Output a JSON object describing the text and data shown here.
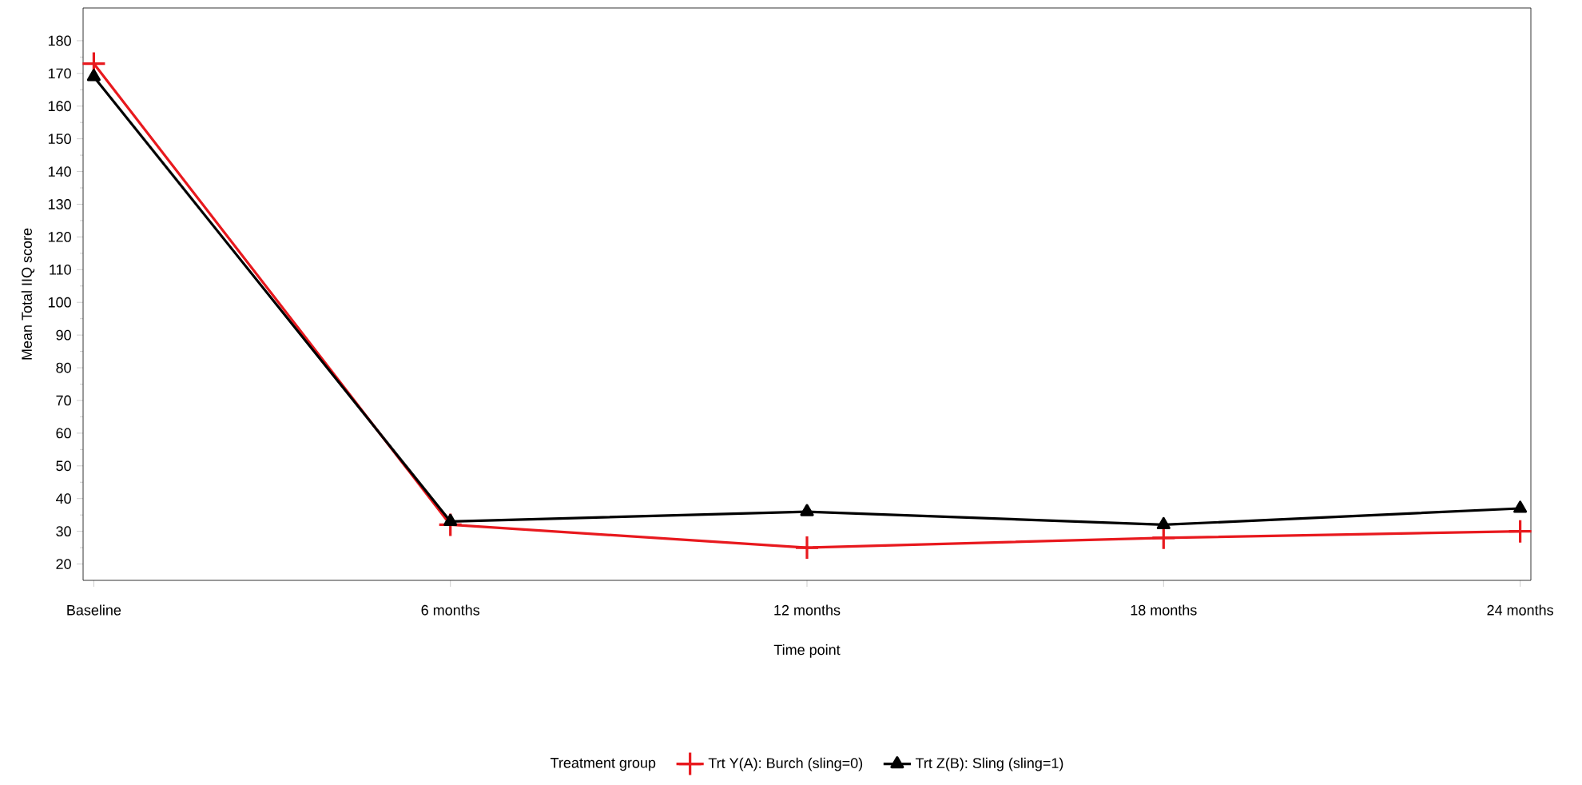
{
  "chart_data": {
    "type": "line",
    "xlabel": "Time point",
    "ylabel": "Mean Total IIQ score",
    "legend_title": "Treatment group",
    "categories": [
      "Baseline",
      "6 months",
      "12 months",
      "18 months",
      "24 months"
    ],
    "series": [
      {
        "name": "Trt Y(A): Burch (sling=0)",
        "color": "#e8191e",
        "marker": "cross",
        "values": [
          173,
          32,
          25,
          28,
          30
        ]
      },
      {
        "name": "Trt Z(B): Sling (sling=1)",
        "color": "#000000",
        "marker": "triangle",
        "values": [
          169,
          33,
          36,
          32,
          37
        ]
      }
    ],
    "ylim": [
      15,
      190
    ],
    "yticks": [
      20,
      30,
      40,
      50,
      60,
      70,
      80,
      90,
      100,
      110,
      120,
      130,
      140,
      150,
      160,
      170,
      180
    ],
    "grid": false,
    "legend": "bottom",
    "line_style": "solid"
  }
}
